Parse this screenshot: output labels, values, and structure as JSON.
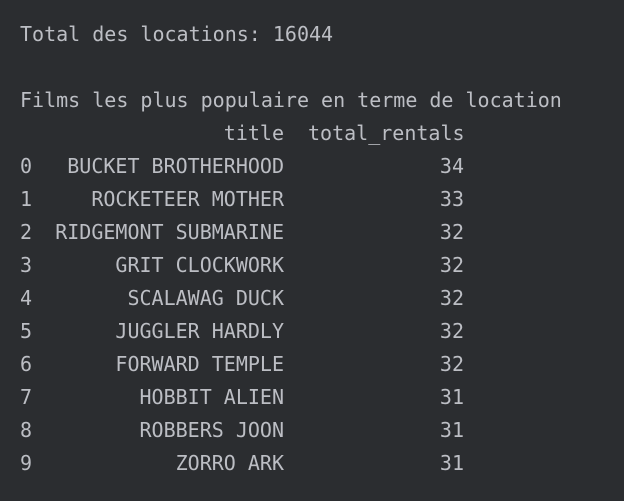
{
  "console": {
    "total_line": "Total des locations: 16044",
    "heading_line": "Films les plus populaire en terme de location",
    "columns": {
      "title": "title",
      "total_rentals": "total_rentals"
    },
    "rows": [
      {
        "index": "0",
        "title": "BUCKET BROTHERHOOD",
        "total_rentals": "34"
      },
      {
        "index": "1",
        "title": "ROCKETEER MOTHER",
        "total_rentals": "33"
      },
      {
        "index": "2",
        "title": "RIDGEMONT SUBMARINE",
        "total_rentals": "32"
      },
      {
        "index": "3",
        "title": "GRIT CLOCKWORK",
        "total_rentals": "32"
      },
      {
        "index": "4",
        "title": "SCALAWAG DUCK",
        "total_rentals": "32"
      },
      {
        "index": "5",
        "title": "JUGGLER HARDLY",
        "total_rentals": "32"
      },
      {
        "index": "6",
        "title": "FORWARD TEMPLE",
        "total_rentals": "32"
      },
      {
        "index": "7",
        "title": "HOBBIT ALIEN",
        "total_rentals": "31"
      },
      {
        "index": "8",
        "title": "ROBBERS JOON",
        "total_rentals": "31"
      },
      {
        "index": "9",
        "title": "ZORRO ARK",
        "total_rentals": "31"
      }
    ]
  }
}
